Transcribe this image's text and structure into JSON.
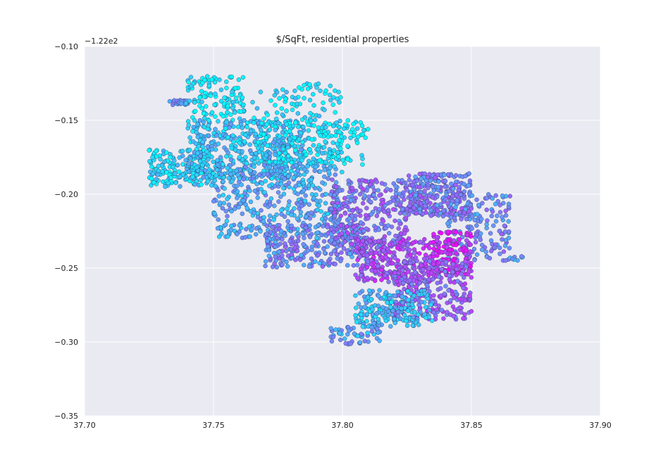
{
  "chart_data": {
    "type": "scatter",
    "title": "$/SqFt, residential properties",
    "xlabel": "",
    "ylabel": "",
    "xlim": [
      37.7,
      37.9
    ],
    "ylim": [
      -0.35,
      -0.1
    ],
    "y_offset_label": "−1.22e2",
    "x_ticks": [
      37.7,
      37.75,
      37.8,
      37.85,
      37.9
    ],
    "x_tick_labels": [
      "37.70",
      "37.75",
      "37.80",
      "37.85",
      "37.90"
    ],
    "y_ticks": [
      -0.1,
      -0.15,
      -0.2,
      -0.25,
      -0.3,
      -0.35
    ],
    "y_tick_labels": [
      "−0.10",
      "−0.15",
      "−0.20",
      "−0.25",
      "−0.30",
      "−0.35"
    ],
    "grid": true,
    "colormap": [
      "#00ffff",
      "#ff00ff"
    ],
    "clusters": [
      {
        "x": [
          37.733,
          37.74
        ],
        "y": [
          -0.136,
          -0.14
        ],
        "n": 30,
        "value": 0.4
      },
      {
        "x": [
          37.74,
          37.762
        ],
        "y": [
          -0.12,
          -0.15
        ],
        "n": 120,
        "value": 0.05
      },
      {
        "x": [
          37.725,
          37.75
        ],
        "y": [
          -0.17,
          -0.195
        ],
        "n": 180,
        "value": 0.15
      },
      {
        "x": [
          37.74,
          37.785
        ],
        "y": [
          -0.15,
          -0.19
        ],
        "n": 480,
        "value": 0.22
      },
      {
        "x": [
          37.765,
          37.8
        ],
        "y": [
          -0.125,
          -0.18
        ],
        "n": 200,
        "value": 0.1
      },
      {
        "x": [
          37.79,
          37.81
        ],
        "y": [
          -0.15,
          -0.18
        ],
        "n": 80,
        "value": 0.03
      },
      {
        "x": [
          37.75,
          37.8
        ],
        "y": [
          -0.18,
          -0.23
        ],
        "n": 420,
        "value": 0.32
      },
      {
        "x": [
          37.77,
          37.81
        ],
        "y": [
          -0.22,
          -0.25
        ],
        "n": 260,
        "value": 0.45
      },
      {
        "x": [
          37.795,
          37.825
        ],
        "y": [
          -0.19,
          -0.235
        ],
        "n": 300,
        "value": 0.55
      },
      {
        "x": [
          37.805,
          37.835
        ],
        "y": [
          -0.23,
          -0.26
        ],
        "n": 260,
        "value": 0.7
      },
      {
        "x": [
          37.825,
          37.85
        ],
        "y": [
          -0.186,
          -0.215
        ],
        "n": 300,
        "value": 0.5
      },
      {
        "x": [
          37.84,
          37.865
        ],
        "y": [
          -0.2,
          -0.245
        ],
        "n": 160,
        "value": 0.45
      },
      {
        "x": [
          37.835,
          37.85
        ],
        "y": [
          -0.225,
          -0.255
        ],
        "n": 140,
        "value": 0.85
      },
      {
        "x": [
          37.82,
          37.85
        ],
        "y": [
          -0.245,
          -0.285
        ],
        "n": 260,
        "value": 0.62
      },
      {
        "x": [
          37.805,
          37.835
        ],
        "y": [
          -0.265,
          -0.29
        ],
        "n": 200,
        "value": 0.25
      },
      {
        "x": [
          37.795,
          37.815
        ],
        "y": [
          -0.29,
          -0.302
        ],
        "n": 50,
        "value": 0.35
      },
      {
        "x": [
          37.865,
          37.87
        ],
        "y": [
          -0.242,
          -0.245
        ],
        "n": 8,
        "value": 0.3
      }
    ]
  }
}
